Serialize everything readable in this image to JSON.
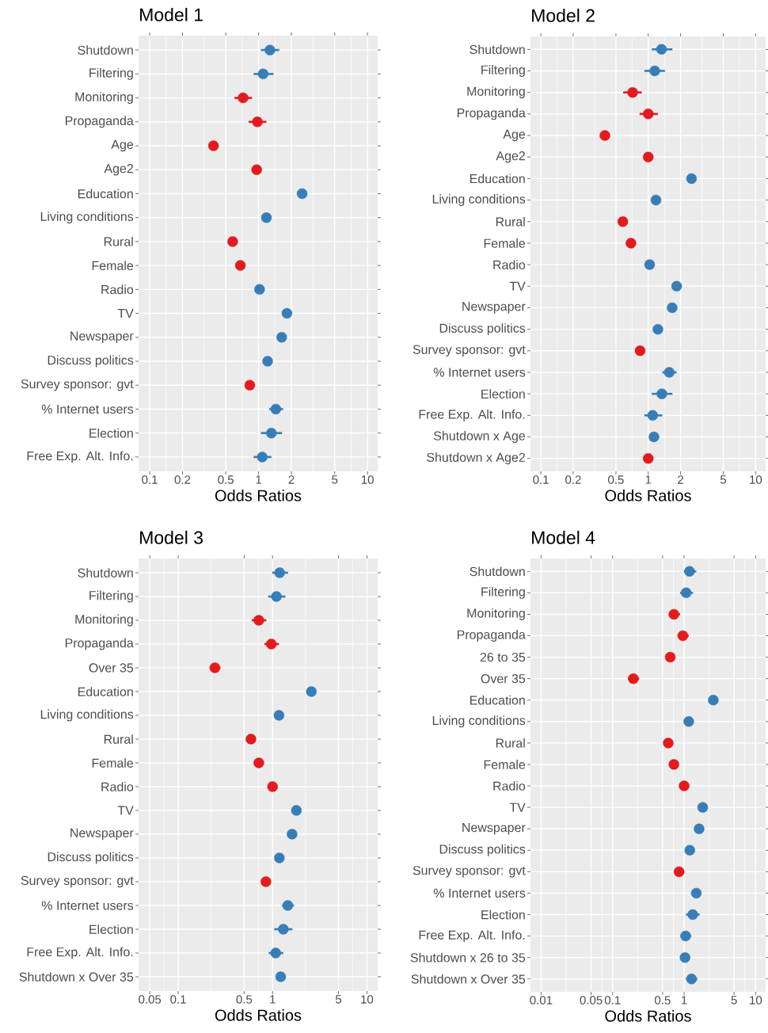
{
  "chart_data": [
    {
      "type": "scatter",
      "title": "Model 1",
      "xlabel": "Odds Ratios",
      "orientation": "horizontal",
      "log": "x",
      "grid": true,
      "categories": [
        "Shutdown",
        "Filtering",
        "Monitoring",
        "Propaganda",
        "Age",
        "Age2",
        "Education",
        "Living conditions",
        "Rural",
        "Female",
        "Radio",
        "TV",
        "Newspaper",
        "Discuss politics",
        "Survey sponsor: gvt",
        "% Internet users",
        "Election",
        "Free Exp. Alt. Info."
      ],
      "values": [
        1.27,
        1.1,
        0.72,
        0.975,
        0.385,
        0.96,
        2.51,
        1.18,
        0.578,
        0.68,
        1.02,
        1.82,
        1.63,
        1.21,
        0.83,
        1.44,
        1.31,
        1.08
      ],
      "colors": [
        "#377eb8",
        "#377eb8",
        "#e41a1c",
        "#e41a1c",
        "#e41a1c",
        "#e41a1c",
        "#377eb8",
        "#377eb8",
        "#e41a1c",
        "#e41a1c",
        "#377eb8",
        "#377eb8",
        "#377eb8",
        "#377eb8",
        "#e41a1c",
        "#377eb8",
        "#377eb8",
        "#377eb8"
      ],
      "errors": [
        [
          1.05,
          1.55
        ],
        [
          0.9,
          1.37
        ],
        [
          0.6,
          0.87
        ],
        [
          0.81,
          1.18
        ],
        null,
        null,
        null,
        null,
        null,
        null,
        null,
        null,
        null,
        null,
        null,
        [
          1.25,
          1.68
        ],
        [
          1.05,
          1.64
        ],
        [
          0.9,
          1.31
        ]
      ],
      "xlim": [
        0.079,
        12.4
      ],
      "xticks": [
        0.1,
        0.2,
        0.5,
        1,
        2,
        5,
        10
      ]
    },
    {
      "type": "scatter",
      "title": "Model 2",
      "xlabel": "Odds Ratios",
      "orientation": "horizontal",
      "log": "x",
      "grid": true,
      "categories": [
        "Shutdown",
        "Filtering",
        "Monitoring",
        "Propaganda",
        "Age",
        "Age2",
        "Education",
        "Living conditions",
        "Rural",
        "Female",
        "Radio",
        "TV",
        "Newspaper",
        "Discuss politics",
        "Survey sponsor: gvt",
        "% Internet users",
        "Election",
        "Free Exp. Alt. Info.",
        "Shutdown x Age",
        "Shutdown x Age2"
      ],
      "values": [
        1.33,
        1.15,
        0.715,
        1.0,
        0.395,
        1.0,
        2.53,
        1.18,
        0.58,
        0.69,
        1.03,
        1.84,
        1.67,
        1.23,
        0.84,
        1.57,
        1.34,
        1.1,
        1.13,
        1.0
      ],
      "colors": [
        "#377eb8",
        "#377eb8",
        "#e41a1c",
        "#e41a1c",
        "#e41a1c",
        "#e41a1c",
        "#377eb8",
        "#377eb8",
        "#e41a1c",
        "#e41a1c",
        "#377eb8",
        "#377eb8",
        "#377eb8",
        "#377eb8",
        "#e41a1c",
        "#377eb8",
        "#377eb8",
        "#377eb8",
        "#377eb8",
        "#e41a1c"
      ],
      "errors": [
        [
          1.08,
          1.68
        ],
        [
          0.92,
          1.43
        ],
        [
          0.585,
          0.87
        ],
        [
          0.83,
          1.23
        ],
        null,
        null,
        null,
        null,
        null,
        null,
        null,
        null,
        null,
        null,
        null,
        [
          1.35,
          1.84
        ],
        [
          1.08,
          1.68
        ],
        [
          0.92,
          1.35
        ],
        null,
        null
      ],
      "xlim": [
        0.08,
        12.4
      ],
      "xticks": [
        0.1,
        0.2,
        0.5,
        1,
        2,
        5,
        10
      ]
    },
    {
      "type": "scatter",
      "title": "Model 3",
      "xlabel": "Odds Ratios",
      "orientation": "horizontal",
      "log": "x",
      "grid": true,
      "categories": [
        "Shutdown",
        "Filtering",
        "Monitoring",
        "Propaganda",
        "Over 35",
        "Education",
        "Living conditions",
        "Rural",
        "Female",
        "Radio",
        "TV",
        "Newspaper",
        "Discuss politics",
        "Survey sponsor: gvt",
        "% Internet users",
        "Election",
        "Free Exp. Alt. Info.",
        "Shutdown x Over 35"
      ],
      "values": [
        1.19,
        1.1,
        0.715,
        0.97,
        0.245,
        2.58,
        1.17,
        0.59,
        0.715,
        1.0,
        1.79,
        1.61,
        1.18,
        0.85,
        1.45,
        1.3,
        1.08,
        1.22
      ],
      "colors": [
        "#377eb8",
        "#377eb8",
        "#e41a1c",
        "#e41a1c",
        "#e41a1c",
        "#377eb8",
        "#377eb8",
        "#e41a1c",
        "#e41a1c",
        "#e41a1c",
        "#377eb8",
        "#377eb8",
        "#377eb8",
        "#e41a1c",
        "#377eb8",
        "#377eb8",
        "#377eb8",
        "#377eb8"
      ],
      "errors": [
        [
          0.99,
          1.46
        ],
        [
          0.9,
          1.37
        ],
        [
          0.6,
          0.86
        ],
        [
          0.82,
          1.17
        ],
        [
          0.215,
          0.28
        ],
        null,
        null,
        null,
        null,
        null,
        null,
        null,
        null,
        null,
        [
          1.26,
          1.69
        ],
        [
          1.04,
          1.63
        ],
        [
          0.91,
          1.3
        ],
        null
      ],
      "xlim": [
        0.038,
        13.0
      ],
      "xticks": [
        0.05,
        0.1,
        0.5,
        1,
        5,
        10
      ]
    },
    {
      "type": "scatter",
      "title": "Model 4",
      "xlabel": "Odds Ratios",
      "orientation": "horizontal",
      "log": "x",
      "grid": true,
      "categories": [
        "Shutdown",
        "Filtering",
        "Monitoring",
        "Propaganda",
        "26 to 35",
        "Over 35",
        "Education",
        "Living conditions",
        "Rural",
        "Female",
        "Radio",
        "TV",
        "Newspaper",
        "Discuss politics",
        "Survey sponsor: gvt",
        "% Internet users",
        "Election",
        "Free Exp. Alt. Info.",
        "Shutdown x 26 to 35",
        "Shutdown x Over 35"
      ],
      "values": [
        1.19,
        1.07,
        0.72,
        0.96,
        0.64,
        0.195,
        2.56,
        1.16,
        0.6,
        0.72,
        1.0,
        1.82,
        1.62,
        1.2,
        0.85,
        1.48,
        1.32,
        1.05,
        1.03,
        1.27
      ],
      "colors": [
        "#377eb8",
        "#377eb8",
        "#e41a1c",
        "#e41a1c",
        "#e41a1c",
        "#e41a1c",
        "#377eb8",
        "#377eb8",
        "#e41a1c",
        "#e41a1c",
        "#e41a1c",
        "#377eb8",
        "#377eb8",
        "#377eb8",
        "#e41a1c",
        "#377eb8",
        "#377eb8",
        "#377eb8",
        "#377eb8",
        "#377eb8"
      ],
      "errors": [
        [
          0.99,
          1.48
        ],
        [
          0.88,
          1.33
        ],
        [
          0.61,
          0.88
        ],
        [
          0.81,
          1.16
        ],
        null,
        [
          0.163,
          0.235
        ],
        null,
        null,
        null,
        null,
        null,
        null,
        null,
        null,
        null,
        null,
        [
          1.06,
          1.65
        ],
        [
          0.89,
          1.26
        ],
        null,
        [
          1.06,
          1.53
        ]
      ],
      "xlim": [
        0.0071,
        13.8
      ],
      "xticks": [
        0.01,
        0.05,
        0.1,
        0.5,
        1,
        5,
        10
      ]
    }
  ]
}
